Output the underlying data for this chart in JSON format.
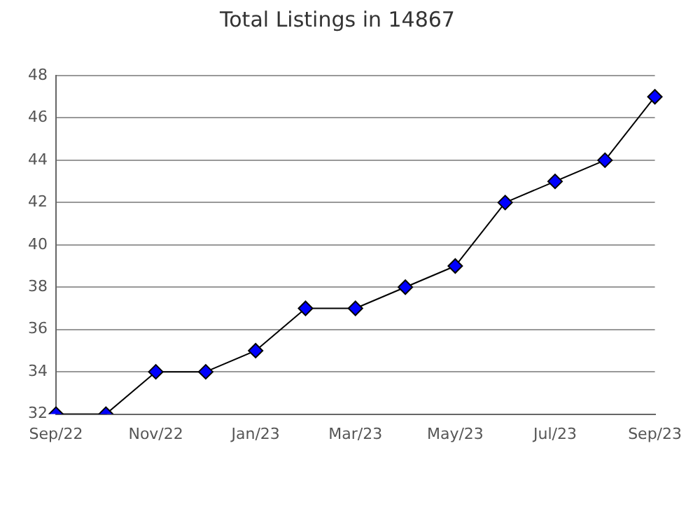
{
  "chart_data": {
    "type": "line",
    "title": "Total Listings in 14867",
    "categories": [
      "Sep/22",
      null,
      "Nov/22",
      null,
      "Jan/23",
      null,
      "Mar/23",
      null,
      "May/23",
      null,
      "Jul/23",
      null,
      "Sep/23"
    ],
    "series": [
      {
        "color": "#0000ff",
        "values": [
          32,
          32,
          34,
          34,
          35,
          37,
          37,
          38,
          39,
          42,
          43,
          44,
          47
        ]
      }
    ],
    "ylim": [
      32,
      48
    ],
    "yticks": [
      32,
      34,
      36,
      38,
      40,
      42,
      44,
      46,
      48
    ],
    "grid": "y",
    "legend": false,
    "marker": "diamond",
    "line_style": "solid"
  }
}
